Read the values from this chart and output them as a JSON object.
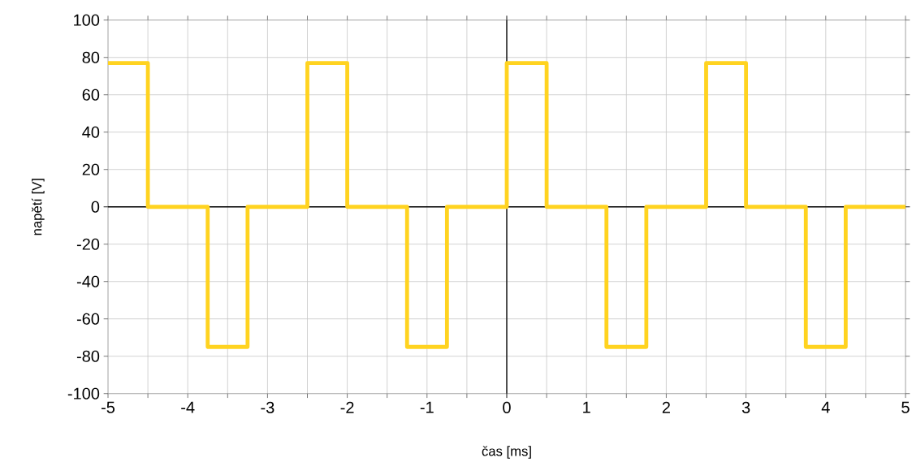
{
  "chart_data": {
    "type": "step",
    "xlabel": "čas [ms]",
    "ylabel": "napětí [V]",
    "x": [
      -5,
      -4.5,
      -3.75,
      -3.25,
      -2.5,
      -2,
      -1.25,
      -0.75,
      0,
      0.5,
      1.25,
      1.75,
      2.5,
      3,
      3.75,
      4.25,
      5
    ],
    "series": [
      {
        "color": "#ffd320",
        "values": [
          77,
          0,
          -75,
          0,
          77,
          0,
          -75,
          0,
          77,
          0,
          -75,
          0,
          77,
          0,
          -75,
          0,
          0
        ]
      }
    ],
    "xlim": [
      -5,
      5
    ],
    "xticks": [
      -5,
      {
        "value": -4.5,
        "label": null
      },
      -4,
      {
        "value": -3.5,
        "label": null
      },
      -3,
      {
        "value": -2.5,
        "label": null
      },
      -2,
      {
        "value": -1.5,
        "label": null
      },
      -1,
      {
        "value": -0.5,
        "label": null
      },
      0,
      {
        "value": 0.5,
        "label": null
      },
      1,
      {
        "value": 1.5,
        "label": null
      },
      2,
      {
        "value": 2.5,
        "label": null
      },
      3,
      {
        "value": 3.5,
        "label": null
      },
      4,
      {
        "value": 4.5,
        "label": null
      },
      5
    ],
    "ylim": [
      -100,
      100
    ],
    "yticks": [
      -100,
      -80,
      -60,
      -40,
      -20,
      0,
      20,
      40,
      60,
      80,
      100
    ],
    "grid": true,
    "marker": "none",
    "line_style": "solid"
  }
}
